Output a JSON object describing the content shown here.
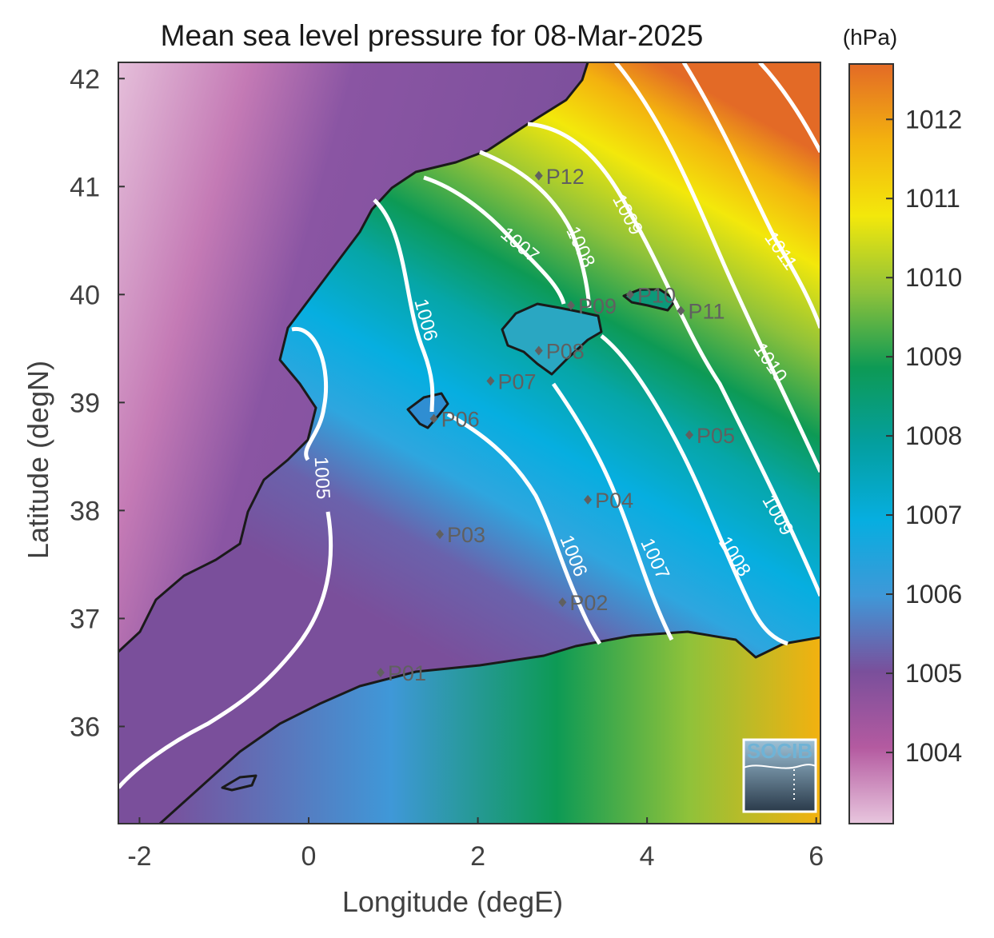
{
  "title": "Mean sea level pressure for 08-Mar-2025",
  "colorbar": {
    "unit": "(hPa)",
    "ticks": [
      "1012",
      "1011",
      "1010",
      "1009",
      "1008",
      "1007",
      "1006",
      "1005",
      "1004"
    ],
    "range": [
      1003.1,
      1012.7
    ],
    "colormap": [
      "#e8c6de",
      "#b45aa0",
      "#7a4f9b",
      "#3f98d8",
      "#06aee0",
      "#049f9f",
      "#0d9a55",
      "#8fc23a",
      "#f3e80b",
      "#f3b10f",
      "#e36a26"
    ]
  },
  "axes": {
    "xlabel": "Longitude (degE)",
    "ylabel": "Latitude (degN)",
    "xticks": [
      "-2",
      "0",
      "2",
      "4",
      "6"
    ],
    "yticks": [
      "42",
      "41",
      "40",
      "39",
      "38",
      "37",
      "36"
    ],
    "xlim": [
      -2.25,
      6.05
    ],
    "ylim": [
      35.1,
      42.15
    ]
  },
  "contours": [
    "1005",
    "1006",
    "1006",
    "1007",
    "1007",
    "1008",
    "1008",
    "1009",
    "1009",
    "1010",
    "1011"
  ],
  "stations": [
    {
      "label": "P01",
      "lon": 0.85,
      "lat": 36.5
    },
    {
      "label": "P02",
      "lon": 3.0,
      "lat": 37.15
    },
    {
      "label": "P03",
      "lon": 1.55,
      "lat": 37.78
    },
    {
      "label": "P04",
      "lon": 3.3,
      "lat": 38.1
    },
    {
      "label": "P05",
      "lon": 4.5,
      "lat": 38.7
    },
    {
      "label": "P06",
      "lon": 1.48,
      "lat": 38.85
    },
    {
      "label": "P07",
      "lon": 2.15,
      "lat": 39.2
    },
    {
      "label": "P08",
      "lon": 2.72,
      "lat": 39.48
    },
    {
      "label": "P09",
      "lon": 3.1,
      "lat": 39.9
    },
    {
      "label": "P10",
      "lon": 3.8,
      "lat": 40.0
    },
    {
      "label": "P11",
      "lon": 4.4,
      "lat": 39.85
    },
    {
      "label": "P12",
      "lon": 2.72,
      "lat": 41.1
    }
  ],
  "logo": {
    "text": "SOCIB"
  }
}
